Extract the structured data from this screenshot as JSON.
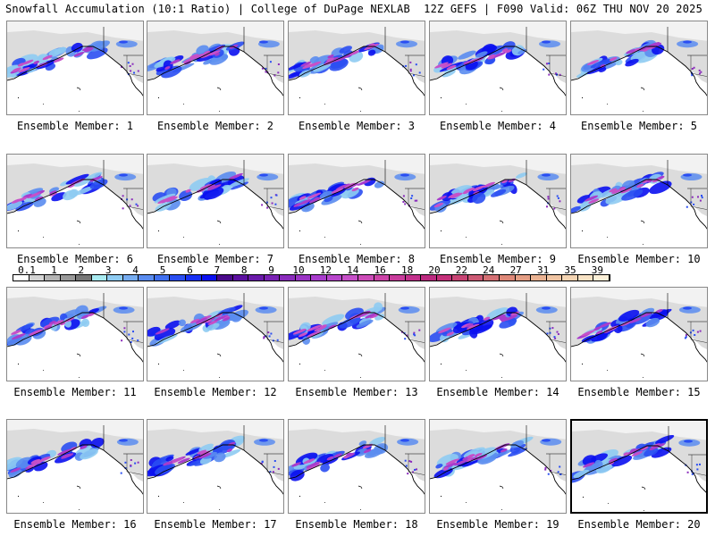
{
  "header": {
    "left_title": "Snowfall Accumulation (10:1 Ratio) | College of DuPage NEXLAB",
    "right_title": "12Z GEFS | F090 Valid: 06Z THU NOV 20 2025"
  },
  "panels": [
    {
      "label": "Ensemble Member: 1"
    },
    {
      "label": "Ensemble Member: 2"
    },
    {
      "label": "Ensemble Member: 3"
    },
    {
      "label": "Ensemble Member: 4"
    },
    {
      "label": "Ensemble Member: 5"
    },
    {
      "label": "Ensemble Member: 6"
    },
    {
      "label": "Ensemble Member: 7"
    },
    {
      "label": "Ensemble Member: 8"
    },
    {
      "label": "Ensemble Member: 9"
    },
    {
      "label": "Ensemble Member: 10"
    },
    {
      "label": "Ensemble Member: 11"
    },
    {
      "label": "Ensemble Member: 12"
    },
    {
      "label": "Ensemble Member: 13"
    },
    {
      "label": "Ensemble Member: 14"
    },
    {
      "label": "Ensemble Member: 15"
    },
    {
      "label": "Ensemble Member: 16"
    },
    {
      "label": "Ensemble Member: 17"
    },
    {
      "label": "Ensemble Member: 18"
    },
    {
      "label": "Ensemble Member: 19"
    },
    {
      "label": "Ensemble Member: 20",
      "selected": true
    }
  ],
  "legend": {
    "ticks": [
      "0.1",
      "1",
      "2",
      "3",
      "4",
      "5",
      "6",
      "7",
      "8",
      "9",
      "10",
      "12",
      "14",
      "16",
      "18",
      "20",
      "22",
      "24",
      "27",
      "31",
      "35",
      "39"
    ],
    "colors": [
      "#ffffff",
      "#d4d4d4",
      "#b4b4b4",
      "#999999",
      "#777777",
      "#a8eaf0",
      "#8ecbf2",
      "#76acf0",
      "#5a8cf0",
      "#4070f0",
      "#2a4ef2",
      "#1830f4",
      "#0a10f0",
      "#4a0a8a",
      "#5c10a0",
      "#6a1aaa",
      "#7a22b4",
      "#8a2cbc",
      "#9a34c4",
      "#a83ccc",
      "#b846cc",
      "#c650c8",
      "#cc4cb8",
      "#cc44a8",
      "#c83c9c",
      "#c2308c",
      "#bc2a80",
      "#c4307a",
      "#c84474",
      "#cc5a74",
      "#d47074",
      "#de8878",
      "#e49e84",
      "#eab292",
      "#f0c4a2",
      "#f4d4b2",
      "#f8e2c4",
      "#fcf0d8"
    ]
  },
  "colors": {
    "land": "#e6e6e6",
    "ocean": "#ffffff",
    "coast": "#000000"
  }
}
